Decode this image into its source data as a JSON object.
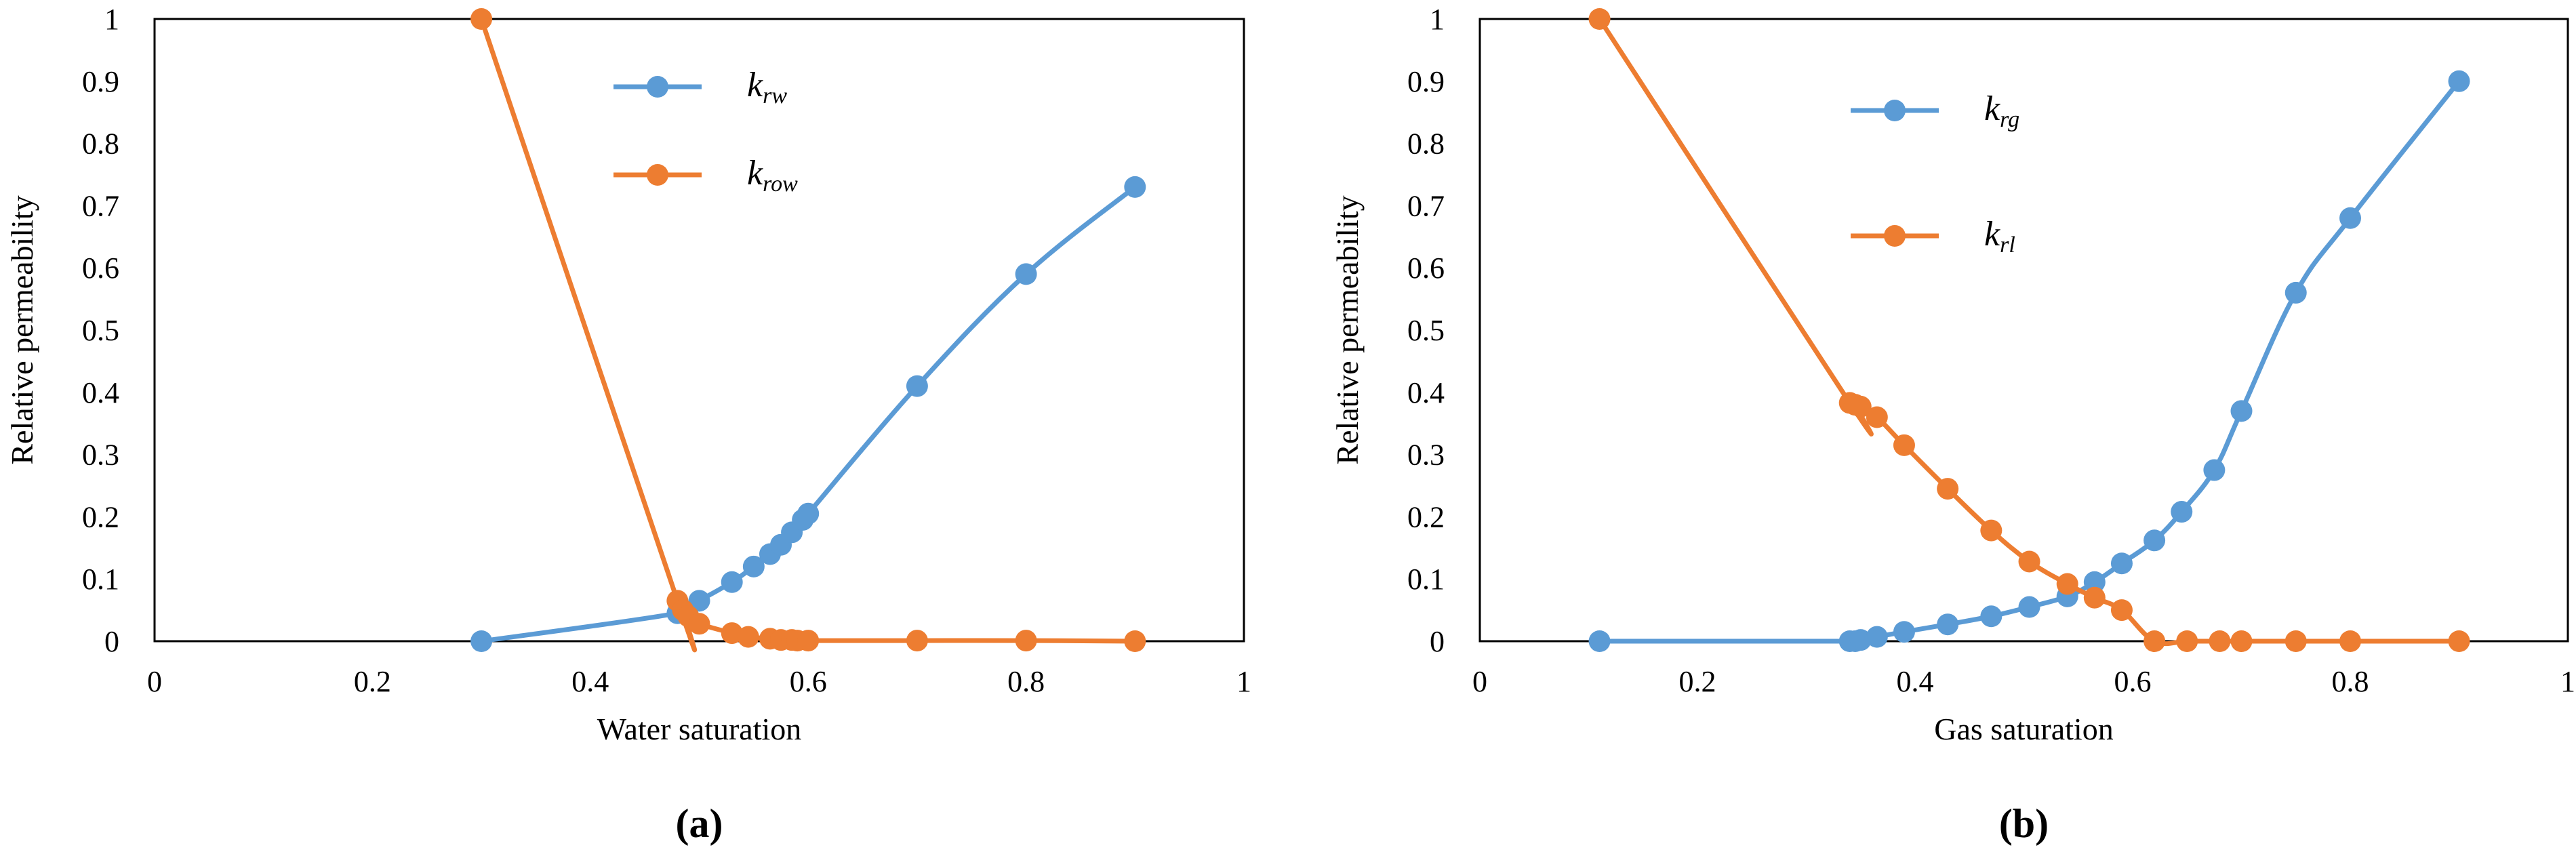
{
  "chart_data": [
    {
      "type": "line",
      "panel_label": "(a)",
      "xlabel": "Water saturation",
      "ylabel": "Relative permeability",
      "xlim": [
        0,
        1
      ],
      "ylim": [
        0,
        1
      ],
      "xticks": [
        "0",
        "0.2",
        "0.4",
        "0.6",
        "0.8",
        "1"
      ],
      "yticks": [
        "0",
        "0.1",
        "0.2",
        "0.3",
        "0.4",
        "0.5",
        "0.6",
        "0.7",
        "0.8",
        "0.9",
        "1"
      ],
      "grid": false,
      "legend_position": "top-center",
      "series": [
        {
          "name_main": "k",
          "name_sub": "rw",
          "color": "#5B9BD5",
          "x": [
            0.3,
            0.48,
            0.5,
            0.53,
            0.55,
            0.565,
            0.575,
            0.585,
            0.595,
            0.6,
            0.7,
            0.8,
            0.9
          ],
          "y": [
            0,
            0.045,
            0.065,
            0.095,
            0.12,
            0.14,
            0.155,
            0.175,
            0.195,
            0.205,
            0.41,
            0.59,
            0.73
          ]
        },
        {
          "name_main": "k",
          "name_sub": "row",
          "color": "#ED7D31",
          "x": [
            0.3,
            0.48,
            0.485,
            0.49,
            0.5,
            0.53,
            0.545,
            0.565,
            0.575,
            0.585,
            0.59,
            0.6,
            0.7,
            0.8,
            0.9
          ],
          "y": [
            1,
            0.065,
            0.05,
            0.04,
            0.028,
            0.013,
            0.007,
            0.004,
            0.002,
            0.002,
            0.001,
            0.001,
            0.001,
            0.001,
            0
          ]
        }
      ]
    },
    {
      "type": "line",
      "panel_label": "(b)",
      "xlabel": "Gas saturation",
      "ylabel": "Relative permeability",
      "xlim": [
        0,
        1
      ],
      "ylim": [
        0,
        1
      ],
      "xticks": [
        "0",
        "0.2",
        "0.4",
        "0.6",
        "0.8",
        "1"
      ],
      "yticks": [
        "0",
        "0.1",
        "0.2",
        "0.3",
        "0.4",
        "0.5",
        "0.6",
        "0.7",
        "0.8",
        "0.9",
        "1"
      ],
      "grid": false,
      "legend_position": "top-center",
      "series": [
        {
          "name_main": "k",
          "name_sub": "rg",
          "color": "#5B9BD5",
          "x": [
            0.11,
            0.34,
            0.345,
            0.35,
            0.365,
            0.39,
            0.43,
            0.47,
            0.505,
            0.54,
            0.565,
            0.59,
            0.62,
            0.645,
            0.675,
            0.7,
            0.75,
            0.8,
            0.9
          ],
          "y": [
            0,
            0,
            0,
            0.002,
            0.007,
            0.015,
            0.027,
            0.04,
            0.055,
            0.072,
            0.095,
            0.125,
            0.162,
            0.208,
            0.275,
            0.37,
            0.56,
            0.68,
            0.9
          ]
        },
        {
          "name_main": "k",
          "name_sub": "rl",
          "color": "#ED7D31",
          "x": [
            0.11,
            0.34,
            0.345,
            0.35,
            0.365,
            0.39,
            0.43,
            0.47,
            0.505,
            0.54,
            0.565,
            0.59,
            0.62,
            0.65,
            0.68,
            0.7,
            0.75,
            0.8,
            0.9
          ],
          "y": [
            1,
            0.383,
            0.38,
            0.377,
            0.36,
            0.315,
            0.245,
            0.178,
            0.128,
            0.092,
            0.07,
            0.05,
            0,
            0,
            0,
            0,
            0,
            0,
            0
          ]
        }
      ]
    }
  ]
}
